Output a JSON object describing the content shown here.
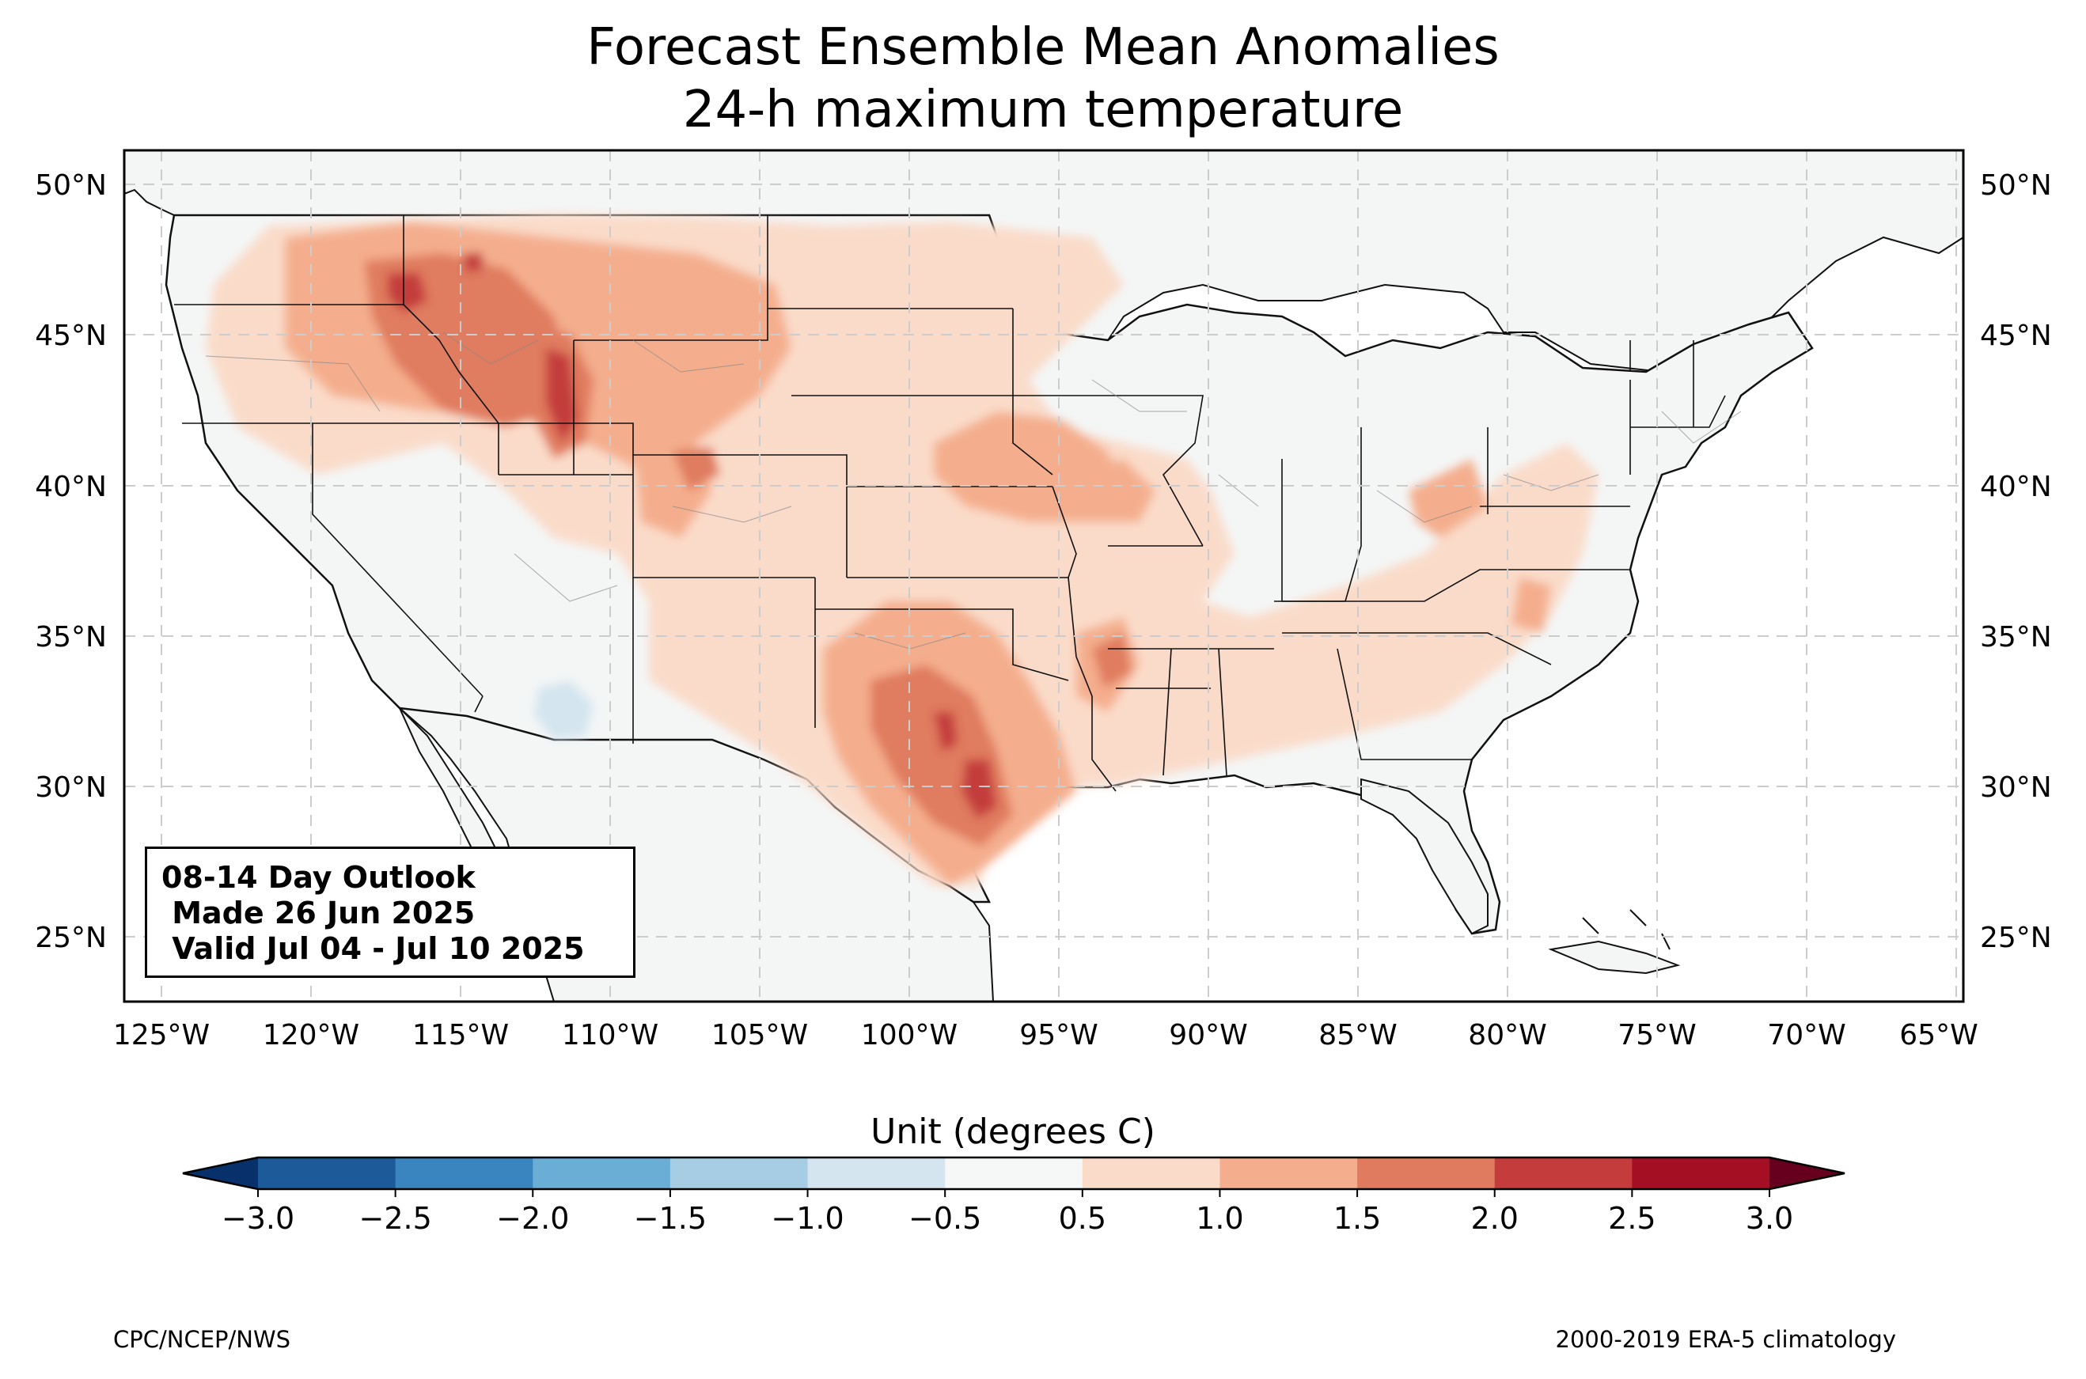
{
  "title": {
    "line1": "Forecast Ensemble Mean Anomalies",
    "line2": "24-h maximum temperature"
  },
  "map": {
    "projection": "PlateCarree",
    "lon_range": [
      -126.3,
      -64.9
    ],
    "lat_range": [
      22.7,
      51.2
    ],
    "lon_ticks": [
      "125°W",
      "120°W",
      "115°W",
      "110°W",
      "105°W",
      "100°W",
      "95°W",
      "90°W",
      "85°W",
      "80°W",
      "75°W",
      "70°W",
      "65°W"
    ],
    "lat_ticks": [
      "50°N",
      "45°N",
      "40°N",
      "35°N",
      "30°N",
      "25°N"
    ],
    "gridlines": "dashed light gray",
    "land_color": "#f4f6f6",
    "ocean_color": "#ffffff"
  },
  "outlook_box": {
    "line1": "08-14 Day Outlook",
    "line2": " Made 26 Jun 2025",
    "line3": " Valid Jul 04 - Jul 10 2025"
  },
  "colorbar": {
    "label": "Unit (degrees C)",
    "ticks": [
      "−3.0",
      "−2.5",
      "−2.0",
      "−1.5",
      "−1.0",
      "−0.5",
      "0.5",
      "1.0",
      "1.5",
      "2.0",
      "2.5",
      "3.0"
    ],
    "boundaries": [
      -3.0,
      -2.5,
      -2.0,
      -1.5,
      -1.0,
      -0.5,
      0.5,
      1.0,
      1.5,
      2.0,
      2.5,
      3.0
    ],
    "colors": [
      "#08306b",
      "#1c5a9a",
      "#3a85c0",
      "#6aaed6",
      "#a6cde3",
      "#d4e5ef",
      "#f6f7f7",
      "#fadbc9",
      "#f4ae8d",
      "#e07b5f",
      "#c43c3c",
      "#a50f24",
      "#67001f"
    ],
    "extend": "both"
  },
  "footer": {
    "left": "CPC/NCEP/NWS",
    "right": "2000-2019 ERA-5 climatology"
  }
}
